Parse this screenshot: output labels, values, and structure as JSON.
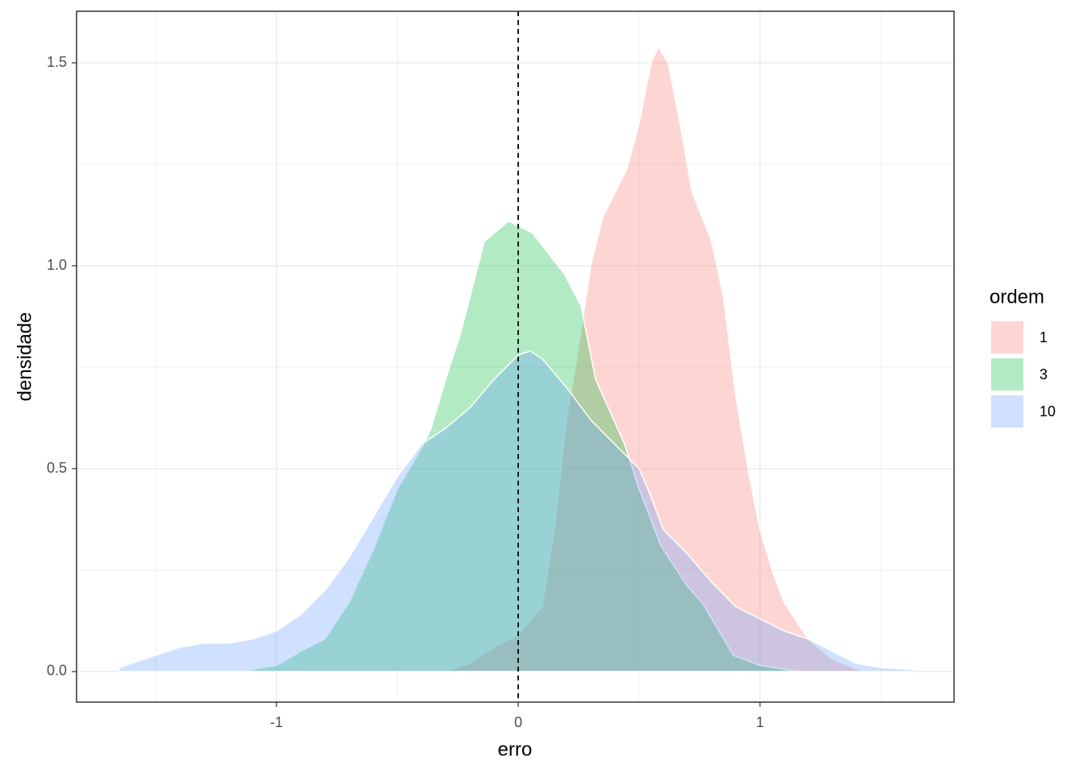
{
  "chart_data": {
    "type": "area",
    "x_label": "erro",
    "y_label": "densidade",
    "legend_title": "ordem",
    "legend": "right",
    "xlim": [
      -1.827,
      1.803
    ],
    "ylim": [
      -0.0754,
      1.627
    ],
    "xticks": [
      -1,
      0,
      1
    ],
    "xminor": [
      -1.5,
      -0.5,
      0.5,
      1.5
    ],
    "yticks": [
      {
        "value": 0,
        "label": "0.0"
      },
      0.5,
      {
        "value": 1,
        "label": "1.0"
      },
      1.5
    ],
    "yminor": [
      0.25,
      0.75,
      1.25
    ],
    "grid": true,
    "vline": 0,
    "fill_opacity": 0.3,
    "series": [
      {
        "name": "1",
        "color": "#F8766D",
        "x": [
          -0.3,
          -0.2,
          -0.1,
          0,
          0.1,
          0.15,
          0.2,
          0.25,
          0.3,
          0.35,
          0.4,
          0.45,
          0.5,
          0.55,
          0.58,
          0.62,
          0.67,
          0.72,
          0.8,
          0.85,
          0.9,
          0.95,
          1.0,
          1.05,
          1.1,
          1.2,
          1.3,
          1.43
        ],
        "values": [
          0,
          0.02,
          0.06,
          0.09,
          0.16,
          0.35,
          0.62,
          0.8,
          1.0,
          1.12,
          1.18,
          1.24,
          1.35,
          1.5,
          1.54,
          1.5,
          1.35,
          1.18,
          1.06,
          0.92,
          0.68,
          0.5,
          0.35,
          0.25,
          0.17,
          0.08,
          0.03,
          0
        ]
      },
      {
        "name": "3",
        "color": "#00BA38",
        "x": [
          -1.15,
          -1.0,
          -0.9,
          -0.8,
          -0.7,
          -0.6,
          -0.5,
          -0.4,
          -0.36,
          -0.3,
          -0.24,
          -0.14,
          -0.04,
          0.06,
          0.19,
          0.26,
          0.32,
          0.44,
          0.5,
          0.59,
          0.7,
          0.76,
          0.89,
          1.0,
          1.16
        ],
        "values": [
          0,
          0.015,
          0.05,
          0.08,
          0.17,
          0.3,
          0.45,
          0.55,
          0.6,
          0.72,
          0.83,
          1.06,
          1.11,
          1.08,
          0.98,
          0.9,
          0.72,
          0.56,
          0.45,
          0.31,
          0.21,
          0.17,
          0.04,
          0.015,
          0
        ]
      },
      {
        "name": "10",
        "color": "#619CFF",
        "x": [
          -1.65,
          -1.5,
          -1.4,
          -1.3,
          -1.2,
          -1.1,
          -1.0,
          -0.9,
          -0.8,
          -0.7,
          -0.6,
          -0.5,
          -0.4,
          -0.3,
          -0.2,
          -0.1,
          0,
          0.05,
          0.1,
          0.2,
          0.3,
          0.4,
          0.45,
          0.5,
          0.55,
          0.6,
          0.7,
          0.8,
          0.9,
          1.0,
          1.1,
          1.2,
          1.3,
          1.4,
          1.5,
          1.63
        ],
        "values": [
          0.01,
          0.04,
          0.06,
          0.07,
          0.07,
          0.08,
          0.1,
          0.14,
          0.2,
          0.28,
          0.38,
          0.48,
          0.56,
          0.6,
          0.65,
          0.72,
          0.78,
          0.79,
          0.77,
          0.7,
          0.62,
          0.56,
          0.53,
          0.5,
          0.43,
          0.35,
          0.29,
          0.22,
          0.16,
          0.13,
          0.1,
          0.08,
          0.05,
          0.02,
          0.01,
          0.005
        ]
      }
    ]
  }
}
